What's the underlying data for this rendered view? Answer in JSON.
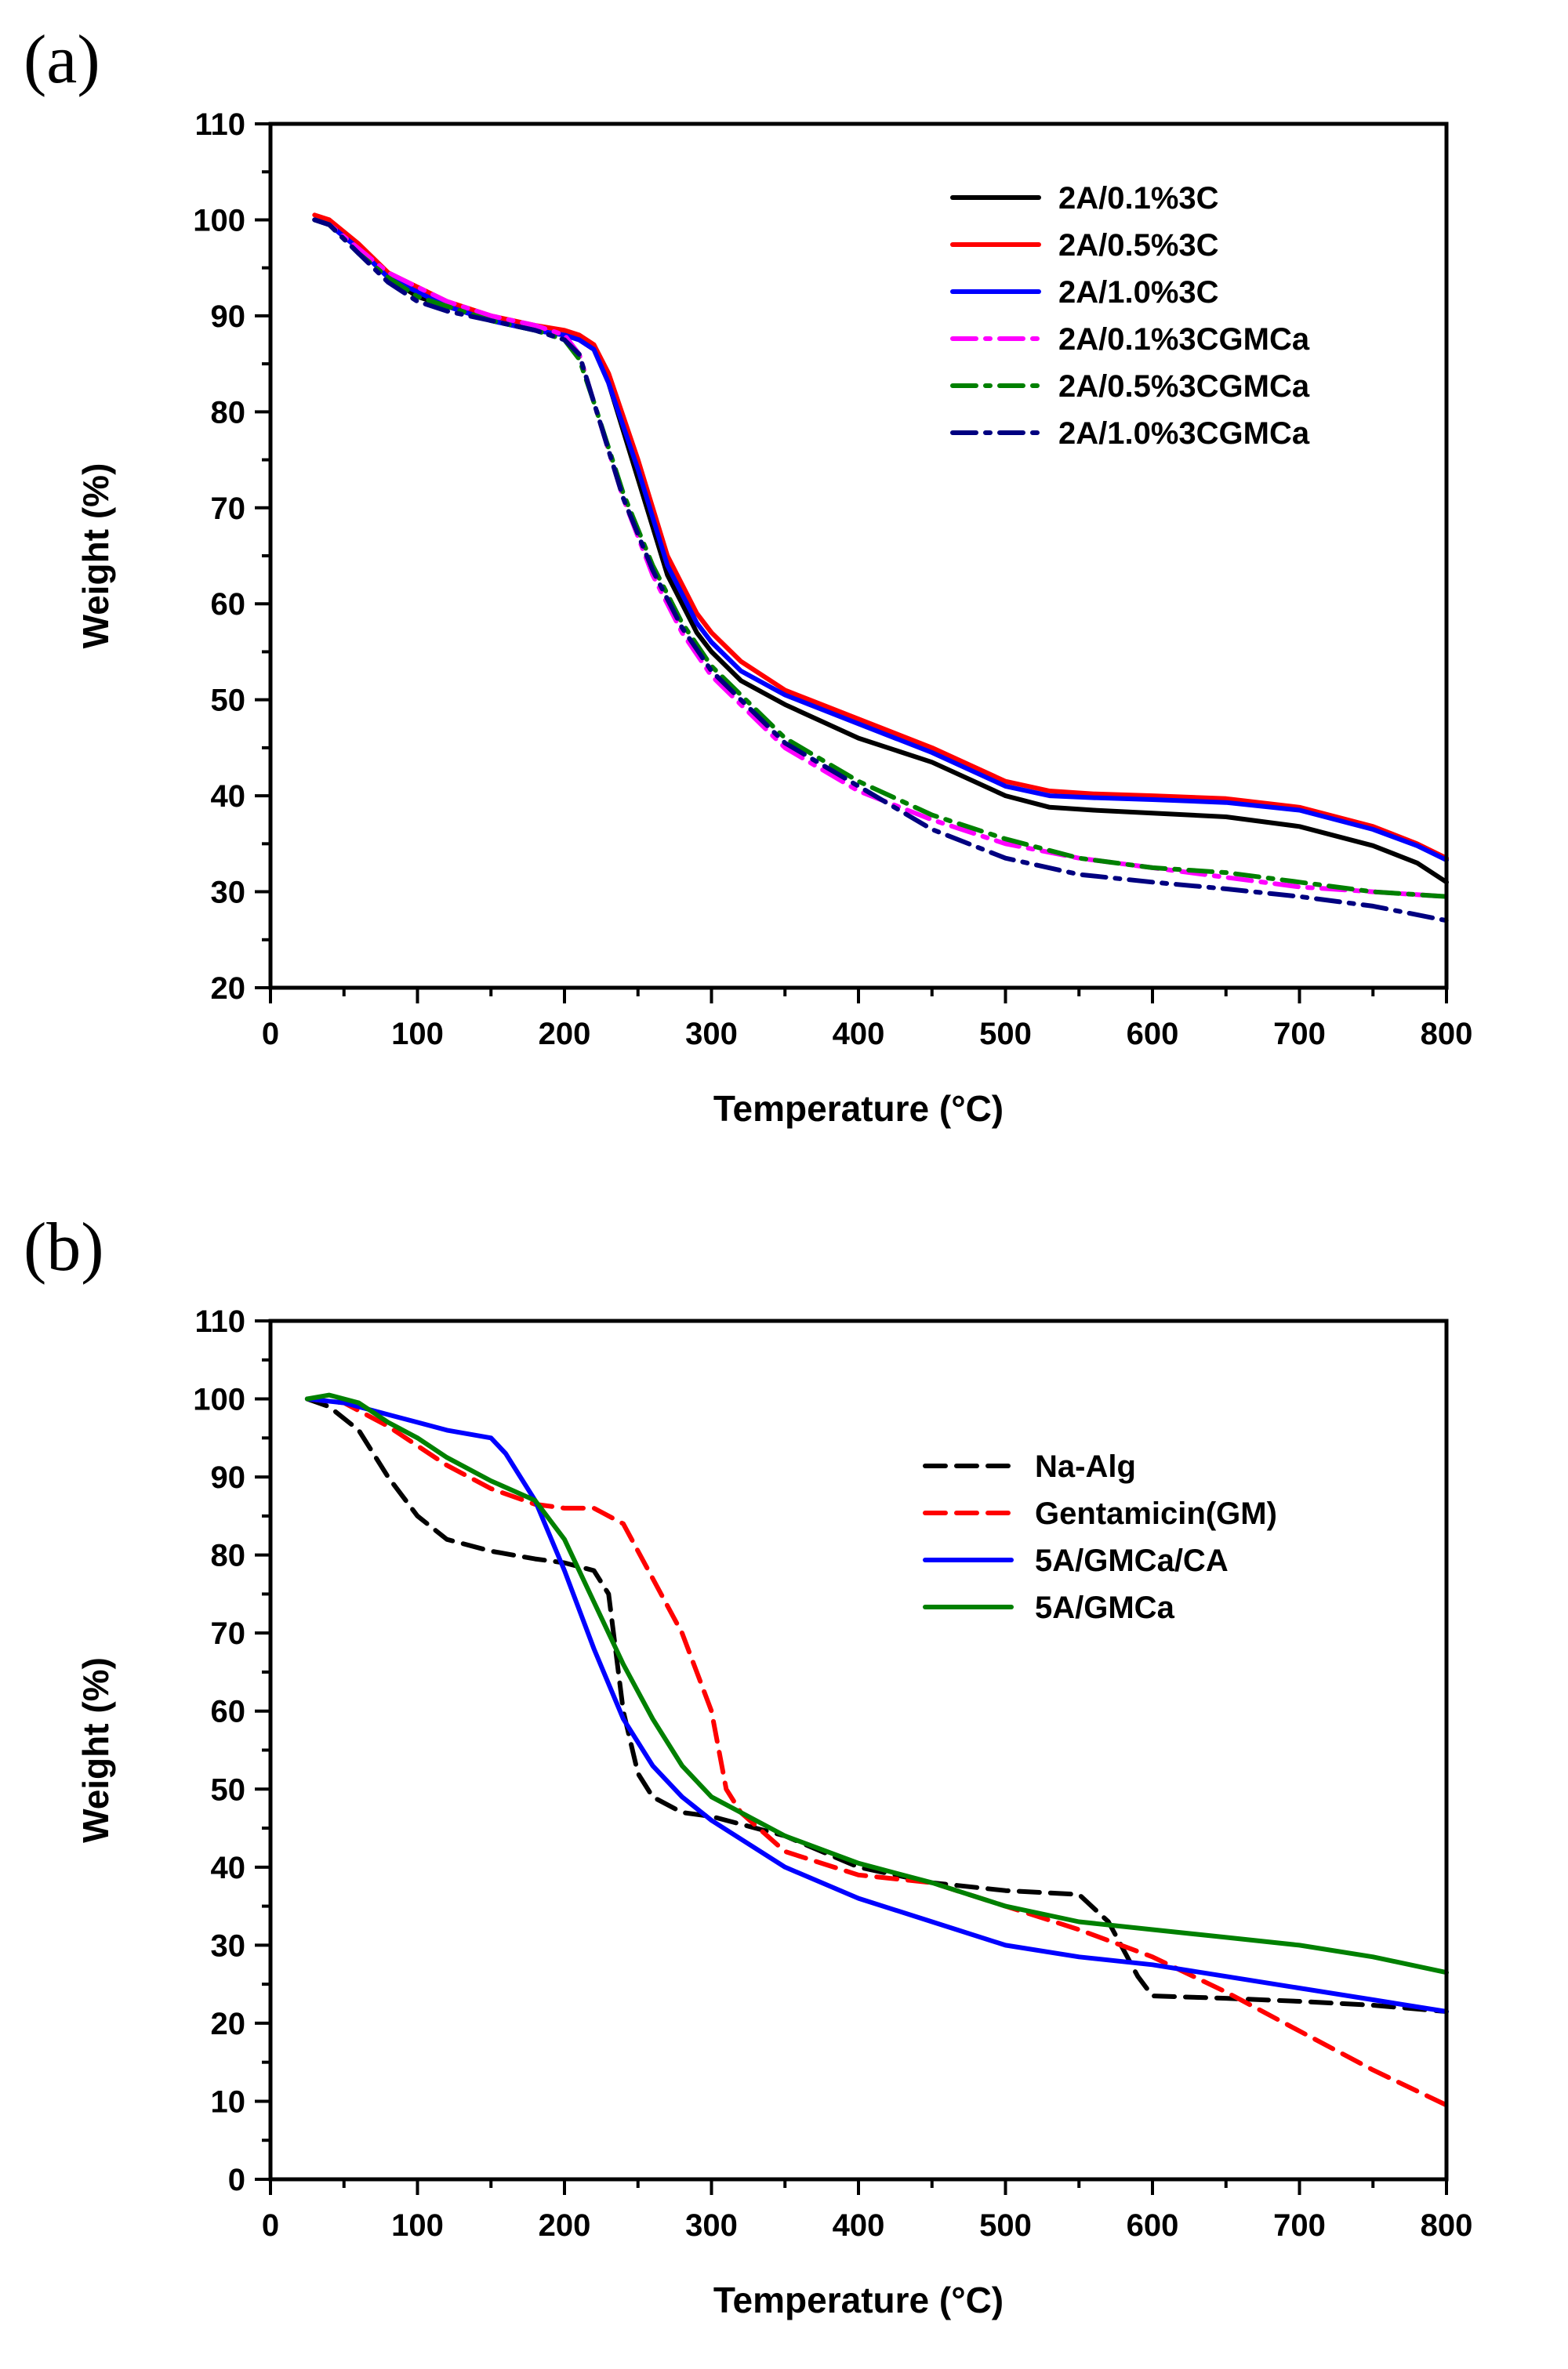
{
  "figure": {
    "panels": [
      {
        "panel_label": "(a)",
        "chart_data": {
          "type": "line",
          "title": "",
          "xlabel": "Temperature (°C)",
          "ylabel": "Weight (%)",
          "xlim": [
            0,
            800
          ],
          "ylim": [
            20,
            110
          ],
          "xticks": [
            0,
            100,
            200,
            300,
            400,
            500,
            600,
            700,
            800
          ],
          "yticks": [
            20,
            30,
            40,
            50,
            60,
            70,
            80,
            90,
            100,
            110
          ],
          "grid": false,
          "legend_position": "top-right",
          "series": [
            {
              "name": "2A/0.1%3C",
              "color": "#000000",
              "style": "solid",
              "x": [
                30,
                40,
                60,
                80,
                100,
                120,
                150,
                180,
                200,
                210,
                220,
                230,
                250,
                270,
                290,
                300,
                320,
                350,
                400,
                450,
                500,
                530,
                560,
                600,
                650,
                700,
                750,
                780,
                800
              ],
              "y": [
                100,
                99.5,
                97,
                94,
                92,
                91,
                89.5,
                88.5,
                88,
                87.5,
                86.5,
                83,
                73,
                63,
                57,
                55,
                52,
                49.5,
                46,
                43.5,
                40,
                38.8,
                38.5,
                38.2,
                37.8,
                36.8,
                34.8,
                33,
                31
              ]
            },
            {
              "name": "2A/0.5%3C",
              "color": "#ff0000",
              "style": "solid",
              "x": [
                30,
                40,
                60,
                80,
                100,
                120,
                150,
                180,
                200,
                210,
                220,
                230,
                250,
                270,
                290,
                300,
                320,
                350,
                400,
                450,
                500,
                530,
                560,
                600,
                650,
                700,
                750,
                780,
                800
              ],
              "y": [
                100.5,
                100,
                97.5,
                94.5,
                93,
                91.5,
                90,
                89,
                88.5,
                88,
                87,
                84,
                75,
                65,
                59,
                57,
                54,
                51,
                48,
                45,
                41.5,
                40.5,
                40.2,
                40,
                39.7,
                38.8,
                36.8,
                35,
                33.5
              ]
            },
            {
              "name": "2A/1.0%3C",
              "color": "#0000ff",
              "style": "solid",
              "x": [
                30,
                40,
                60,
                80,
                100,
                120,
                150,
                180,
                200,
                210,
                220,
                230,
                250,
                270,
                290,
                300,
                320,
                350,
                400,
                450,
                500,
                530,
                560,
                600,
                650,
                700,
                750,
                780,
                800
              ],
              "y": [
                100,
                99.5,
                97,
                94,
                92.5,
                91,
                89.5,
                88.5,
                88,
                87.5,
                86.5,
                83,
                74,
                64,
                58,
                56,
                53,
                50.5,
                47.5,
                44.5,
                41,
                40,
                39.8,
                39.6,
                39.3,
                38.5,
                36.5,
                34.8,
                33.3
              ]
            },
            {
              "name": "2A/0.1%3CGMCa",
              "color": "#ff00ff",
              "style": "dashdot",
              "x": [
                30,
                40,
                60,
                80,
                100,
                120,
                150,
                180,
                200,
                210,
                220,
                240,
                260,
                280,
                300,
                320,
                350,
                400,
                450,
                500,
                550,
                600,
                650,
                700,
                750,
                800
              ],
              "y": [
                100,
                99.5,
                97,
                94.5,
                93,
                91.5,
                90,
                89,
                88,
                86,
                81,
                71,
                63,
                57,
                52.5,
                49.5,
                45,
                40.5,
                37.5,
                35,
                33.5,
                32.5,
                31.5,
                30.5,
                30,
                29.5
              ]
            },
            {
              "name": "2A/0.5%3CGMCa",
              "color": "#008000",
              "style": "dashdot",
              "x": [
                30,
                40,
                60,
                80,
                100,
                120,
                150,
                180,
                200,
                210,
                220,
                240,
                260,
                280,
                300,
                320,
                350,
                400,
                450,
                500,
                550,
                600,
                650,
                700,
                750,
                800
              ],
              "y": [
                100,
                99.5,
                96.5,
                94,
                92,
                91,
                89.5,
                88.5,
                87.5,
                85.5,
                81,
                71.5,
                64,
                58,
                53.5,
                50.5,
                46,
                41.5,
                38,
                35.5,
                33.5,
                32.5,
                32,
                31,
                30,
                29.5
              ]
            },
            {
              "name": "2A/1.0%3CGMCa",
              "color": "#000080",
              "style": "dashdot",
              "x": [
                30,
                40,
                60,
                80,
                100,
                120,
                150,
                180,
                200,
                210,
                220,
                240,
                260,
                280,
                300,
                320,
                350,
                400,
                450,
                500,
                550,
                600,
                650,
                700,
                750,
                800
              ],
              "y": [
                100,
                99.5,
                96.5,
                93.5,
                91.5,
                90.5,
                89.5,
                88.5,
                87.5,
                86,
                81,
                71,
                63.5,
                57.5,
                53,
                50,
                45.5,
                41,
                36.5,
                33.5,
                31.8,
                31,
                30.3,
                29.5,
                28.5,
                27
              ]
            }
          ]
        }
      },
      {
        "panel_label": "(b)",
        "chart_data": {
          "type": "line",
          "title": "",
          "xlabel": "Temperature (°C)",
          "ylabel": "Weight (%)",
          "xlim": [
            0,
            800
          ],
          "ylim": [
            0,
            110
          ],
          "xticks": [
            0,
            100,
            200,
            300,
            400,
            500,
            600,
            700,
            800
          ],
          "yticks": [
            0,
            10,
            20,
            30,
            40,
            50,
            60,
            70,
            80,
            90,
            100,
            110
          ],
          "grid": false,
          "legend_position": "center-right",
          "series": [
            {
              "name": "Na-Alg",
              "color": "#000000",
              "style": "dashed",
              "x": [
                25,
                40,
                60,
                80,
                100,
                120,
                150,
                180,
                200,
                220,
                230,
                240,
                250,
                260,
                280,
                300,
                350,
                400,
                450,
                500,
                550,
                570,
                590,
                600,
                650,
                700,
                750,
                800
              ],
              "y": [
                100,
                99,
                96,
                90,
                85,
                82,
                80.5,
                79.5,
                79,
                78,
                75,
                60,
                52,
                49,
                47,
                46.5,
                44,
                40,
                38,
                37,
                36.5,
                33,
                26,
                23.5,
                23.2,
                22.8,
                22.3,
                21.5
              ]
            },
            {
              "name": "Gentamicin(GM)",
              "color": "#ff0000",
              "style": "dashed",
              "x": [
                25,
                50,
                80,
                100,
                120,
                150,
                180,
                200,
                220,
                240,
                260,
                280,
                300,
                310,
                320,
                350,
                400,
                450,
                500,
                550,
                600,
                650,
                700,
                750,
                800
              ],
              "y": [
                100,
                99.5,
                96.5,
                94,
                91.5,
                88.5,
                86.5,
                86,
                86,
                84,
                77,
                70,
                60,
                50,
                47,
                42,
                39,
                38,
                35,
                32,
                28.5,
                24,
                19,
                14,
                9.5
              ]
            },
            {
              "name": "5A/GMCa/CA",
              "color": "#0000ff",
              "style": "solid",
              "x": [
                25,
                50,
                80,
                100,
                120,
                150,
                160,
                180,
                200,
                220,
                240,
                260,
                280,
                300,
                350,
                400,
                450,
                500,
                550,
                600,
                650,
                700,
                750,
                800
              ],
              "y": [
                100,
                99.5,
                98,
                97,
                96,
                95,
                93,
                87,
                78,
                68,
                59,
                53,
                49,
                46,
                40,
                36,
                33,
                30,
                28.5,
                27.5,
                26,
                24.5,
                23,
                21.5
              ]
            },
            {
              "name": "5A/GMCa",
              "color": "#008000",
              "style": "solid",
              "x": [
                25,
                40,
                60,
                80,
                100,
                120,
                150,
                180,
                200,
                220,
                240,
                260,
                280,
                300,
                350,
                400,
                450,
                500,
                550,
                600,
                650,
                700,
                750,
                800
              ],
              "y": [
                100,
                100.5,
                99.5,
                97,
                95,
                92.5,
                89.5,
                87,
                82,
                74,
                66,
                59,
                53,
                49,
                44,
                40.5,
                38,
                35,
                33,
                32,
                31,
                30,
                28.5,
                26.5
              ]
            }
          ]
        }
      }
    ]
  }
}
